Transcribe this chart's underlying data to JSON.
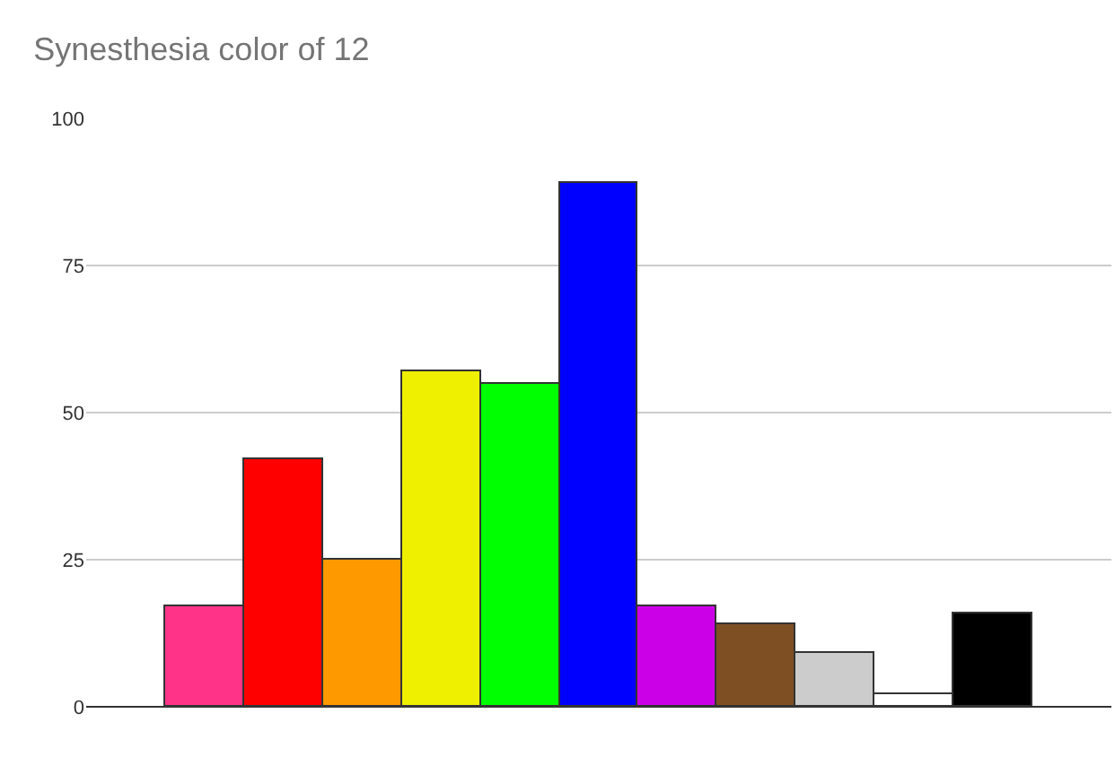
{
  "chart_data": {
    "type": "bar",
    "title": "Synesthesia color of 12",
    "categories": [
      null,
      null,
      null,
      null,
      null,
      null,
      null,
      null,
      null,
      null,
      null,
      null,
      null
    ],
    "values": [
      null,
      17,
      42,
      25,
      57,
      55,
      89,
      17,
      14,
      9,
      2,
      16,
      null
    ],
    "colors": [
      "#ffffff",
      "#ff3388",
      "#ff0000",
      "#ff9900",
      "#eef000",
      "#00ff00",
      "#0000ff",
      "#cc00e6",
      "#7f4f24",
      "#cccccc",
      "#ffffff",
      "#000000",
      "#ffffff"
    ],
    "ylim": [
      0,
      100
    ],
    "yticks": [
      0,
      25,
      50,
      75,
      100
    ],
    "grid": "y",
    "legend": false
  }
}
